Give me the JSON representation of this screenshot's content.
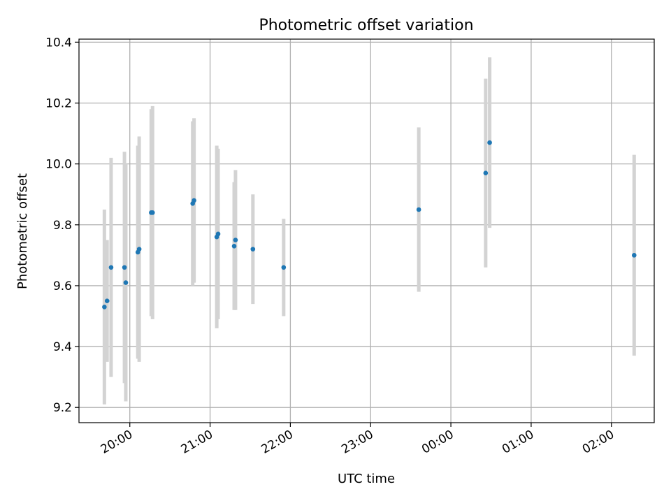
{
  "chart_data": {
    "type": "scatter",
    "title": "Photometric offset variation",
    "xlabel": "UTC time",
    "ylabel": "Photometric offset",
    "xlim": [
      "19:22",
      "02:32"
    ],
    "ylim": [
      9.15,
      10.41
    ],
    "grid": true,
    "x_ticks": [
      "20:00",
      "21:00",
      "22:00",
      "23:00",
      "00:00",
      "01:00",
      "02:00"
    ],
    "y_ticks": [
      "9.2",
      "9.4",
      "9.6",
      "9.8",
      "10.0",
      "10.2",
      "10.4"
    ],
    "series": [
      {
        "marker_color": "#1f77b4",
        "errorbar_color": "#d3d3d3",
        "points": [
          {
            "x": "19:41",
            "y": 9.53,
            "err": 0.32
          },
          {
            "x": "19:43",
            "y": 9.55,
            "err": 0.2
          },
          {
            "x": "19:46",
            "y": 9.66,
            "err": 0.36
          },
          {
            "x": "19:56",
            "y": 9.66,
            "err": 0.38
          },
          {
            "x": "19:57",
            "y": 9.61,
            "err": 0.39
          },
          {
            "x": "20:06",
            "y": 9.71,
            "err": 0.35
          },
          {
            "x": "20:07",
            "y": 9.72,
            "err": 0.37
          },
          {
            "x": "20:16",
            "y": 9.84,
            "err": 0.34
          },
          {
            "x": "20:17",
            "y": 9.84,
            "err": 0.35
          },
          {
            "x": "20:47",
            "y": 9.87,
            "err": 0.27
          },
          {
            "x": "20:48",
            "y": 9.88,
            "err": 0.27
          },
          {
            "x": "21:05",
            "y": 9.76,
            "err": 0.3
          },
          {
            "x": "21:06",
            "y": 9.77,
            "err": 0.28
          },
          {
            "x": "21:18",
            "y": 9.73,
            "err": 0.21
          },
          {
            "x": "21:19",
            "y": 9.75,
            "err": 0.23
          },
          {
            "x": "21:32",
            "y": 9.72,
            "err": 0.18
          },
          {
            "x": "21:55",
            "y": 9.66,
            "err": 0.16
          },
          {
            "x": "23:36",
            "y": 9.85,
            "err": 0.27
          },
          {
            "x": "00:26",
            "y": 9.97,
            "err": 0.31
          },
          {
            "x": "00:29",
            "y": 10.07,
            "err": 0.28
          },
          {
            "x": "02:17",
            "y": 9.7,
            "err": 0.33
          }
        ]
      }
    ]
  }
}
